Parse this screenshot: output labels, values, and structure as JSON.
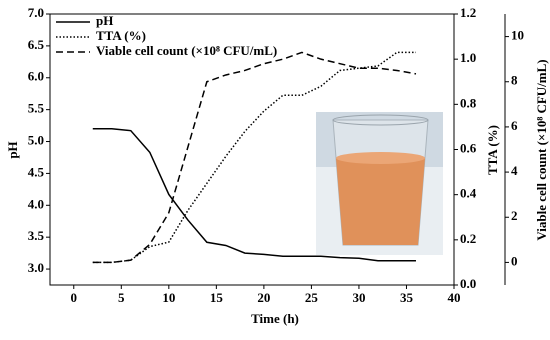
{
  "chart_data": {
    "type": "line",
    "x_label": "Time (h)",
    "y_label": "pH",
    "y2_label": "TTA (%)",
    "y3_label": "Viable cell count (×10⁸ CFU/mL)",
    "xlim": [
      -2.5,
      40
    ],
    "xticks": [
      0,
      5,
      10,
      15,
      20,
      25,
      30,
      35,
      40
    ],
    "ylim": [
      2.75,
      7.0
    ],
    "yticks": [
      {
        "value": 3.0,
        "label": "3.0"
      },
      3.5,
      {
        "value": 4.0,
        "label": "4.0"
      },
      4.5,
      {
        "value": 5.0,
        "label": "5.0"
      },
      5.5,
      {
        "value": 6.0,
        "label": "6.0"
      },
      6.5,
      {
        "value": 7.0,
        "label": "7.0"
      }
    ],
    "y2lim": [
      0,
      1.2
    ],
    "y2ticks": [
      {
        "value": 0,
        "label": "0.0"
      },
      0.2,
      0.4,
      0.6,
      0.8,
      {
        "value": 1,
        "label": "1.0"
      },
      1.2
    ],
    "y3lim": [
      -1,
      11
    ],
    "y3ticks": [
      0,
      2,
      4,
      6,
      8,
      10
    ],
    "x": [
      2,
      4,
      6,
      8,
      10,
      12,
      14,
      16,
      18,
      20,
      22,
      24,
      26,
      28,
      30,
      32,
      34,
      36
    ],
    "series": [
      {
        "name": "pH",
        "color": "#000000",
        "style": "solid",
        "axis": "y",
        "values": [
          5.2,
          5.2,
          5.17,
          4.83,
          4.17,
          3.77,
          3.42,
          3.37,
          3.25,
          3.23,
          3.2,
          3.2,
          3.2,
          3.18,
          3.17,
          3.13,
          3.13,
          3.13
        ]
      },
      {
        "name": "TTA (%)",
        "color": "#000000",
        "style": "dotted",
        "axis": "y2",
        "values": [
          0.1,
          0.1,
          0.11,
          0.17,
          0.19,
          0.33,
          0.45,
          0.57,
          0.68,
          0.77,
          0.84,
          0.84,
          0.88,
          0.95,
          0.96,
          0.97,
          1.03,
          1.03
        ]
      },
      {
        "name": "Viable cell count (×10⁸ CFU/mL)",
        "color": "#000000",
        "style": "dashed",
        "axis": "y3",
        "values": [
          0,
          0,
          0.1,
          0.8,
          2.2,
          5.1,
          8.0,
          8.3,
          8.5,
          8.8,
          9.0,
          9.3,
          9.0,
          8.8,
          8.6,
          8.6,
          8.5,
          8.35
        ]
      }
    ],
    "legend": "upper left"
  }
}
